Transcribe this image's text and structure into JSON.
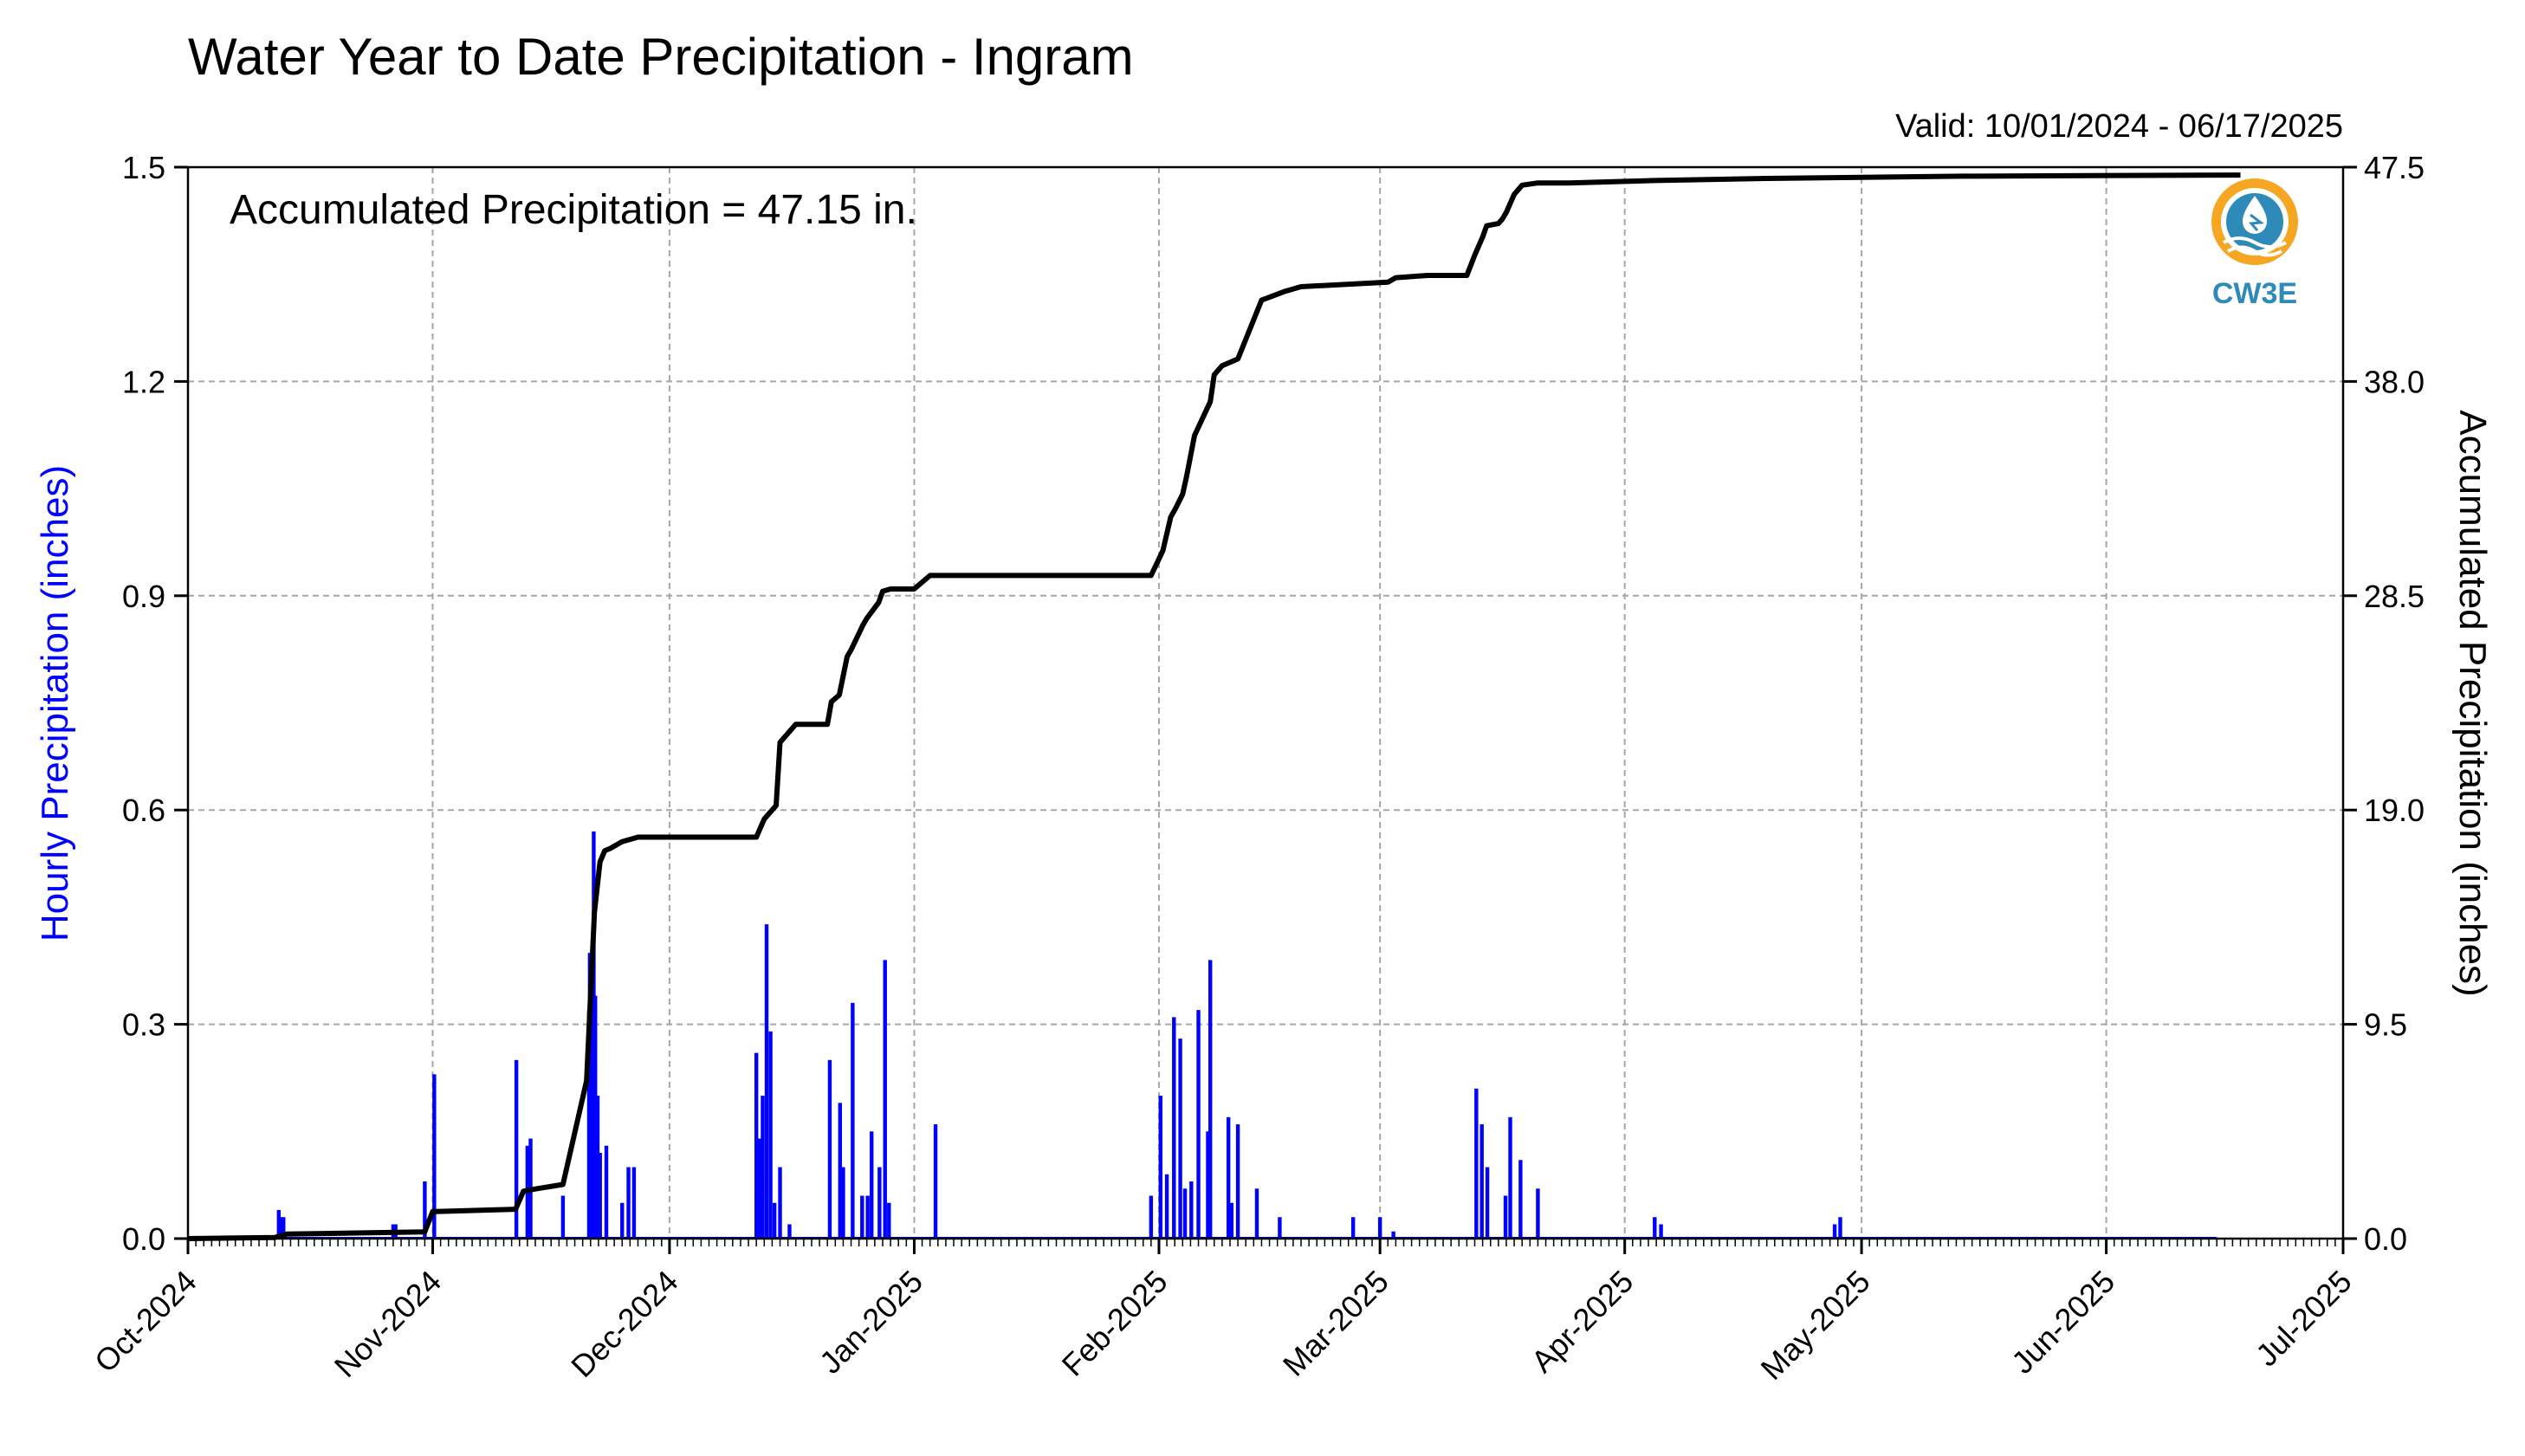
{
  "chart_data": {
    "type": "bar",
    "title": "Water Year to Date Precipitation - Ingram",
    "subtitle": "Valid: 10/01/2024 - 06/17/2025",
    "annotation": "Accumulated Precipitation = 47.15 in.",
    "ylabel": "Hourly Precipitation (inches)",
    "ylabel_right": "Accumulated Precipitation (inches)",
    "ylim": [
      0,
      1.5
    ],
    "ylim_right": [
      0,
      47.5
    ],
    "xlim": [
      0,
      273
    ],
    "x_unit": "days since 2024-10-01",
    "grid": true,
    "x_ticks": [
      {
        "label": "Oct-2024",
        "day": 0
      },
      {
        "label": "Nov-2024",
        "day": 31
      },
      {
        "label": "Dec-2024",
        "day": 61
      },
      {
        "label": "Jan-2025",
        "day": 92
      },
      {
        "label": "Feb-2025",
        "day": 123
      },
      {
        "label": "Mar-2025",
        "day": 151
      },
      {
        "label": "Apr-2025",
        "day": 182
      },
      {
        "label": "May-2025",
        "day": 212
      },
      {
        "label": "Jun-2025",
        "day": 243
      },
      {
        "label": "Jul-2025",
        "day": 273
      }
    ],
    "y_ticks_left": [
      "0.0",
      "0.3",
      "0.6",
      "0.9",
      "1.2",
      "1.5"
    ],
    "y_ticks_right": [
      "0.0",
      "9.5",
      "19.0",
      "28.5",
      "38.0",
      "47.5"
    ],
    "series": [
      {
        "name": "Hourly Precipitation (inches)",
        "type": "bar",
        "color": "#0000ff",
        "x": [
          11.5,
          11.8,
          12.1,
          26.0,
          26.3,
          30.0,
          31.2,
          41.6,
          43.0,
          43.4,
          47.5,
          50.8,
          50.9,
          51.1,
          51.4,
          51.6,
          51.9,
          52.2,
          53.0,
          55.0,
          55.8,
          56.5,
          72.0,
          72.4,
          72.8,
          73.3,
          73.8,
          74.3,
          75.0,
          76.2,
          81.3,
          82.6,
          83.0,
          84.2,
          85.4,
          86.1,
          86.6,
          87.6,
          88.3,
          88.8,
          94.7,
          122.0,
          123.2,
          124.0,
          124.9,
          125.7,
          126.3,
          127.1,
          128.0,
          129.2,
          129.5,
          131.8,
          132.2,
          133.0,
          135.4,
          138.3,
          147.6,
          151.0,
          152.7,
          163.2,
          163.9,
          164.6,
          166.9,
          167.5,
          168.8,
          171.0,
          185.8,
          186.6,
          208.6,
          209.3
        ],
        "values": [
          0.04,
          0.03,
          0.03,
          0.02,
          0.02,
          0.08,
          0.23,
          0.25,
          0.13,
          0.14,
          0.06,
          0.32,
          0.4,
          0.38,
          0.57,
          0.34,
          0.2,
          0.12,
          0.13,
          0.05,
          0.1,
          0.1,
          0.26,
          0.14,
          0.2,
          0.44,
          0.29,
          0.05,
          0.1,
          0.02,
          0.25,
          0.19,
          0.1,
          0.33,
          0.06,
          0.06,
          0.15,
          0.1,
          0.39,
          0.05,
          0.16,
          0.06,
          0.2,
          0.09,
          0.31,
          0.28,
          0.07,
          0.08,
          0.32,
          0.15,
          0.39,
          0.17,
          0.05,
          0.16,
          0.07,
          0.03,
          0.03,
          0.03,
          0.01,
          0.21,
          0.16,
          0.1,
          0.06,
          0.17,
          0.11,
          0.07,
          0.03,
          0.02,
          0.02,
          0.03
        ]
      },
      {
        "name": "Accumulated Precipitation (inches)",
        "type": "line",
        "color": "#000000",
        "axis": "right",
        "x": [
          0,
          11,
          12.5,
          30,
          31,
          31.5,
          41.5,
          42.5,
          44,
          47.5,
          50.5,
          51.5,
          52.2,
          52.8,
          53.5,
          55,
          56,
          57,
          72,
          73,
          74.5,
          75,
          77,
          81,
          81.5,
          82.5,
          83.5,
          84,
          85.5,
          86,
          87.5,
          88,
          89,
          92,
          94,
          122,
          123.5,
          124.5,
          125,
          126,
          126.5,
          127.5,
          129.5,
          130,
          131,
          133,
          136,
          139,
          141,
          152,
          153,
          157,
          162,
          163,
          164,
          164.5,
          166,
          166.5,
          167,
          168,
          169,
          171,
          175,
          185,
          200,
          212,
          225,
          260
        ],
        "values": [
          0.0,
          0.05,
          0.2,
          0.3,
          1.2,
          1.2,
          1.3,
          2.1,
          2.2,
          2.4,
          7.0,
          14.5,
          16.7,
          17.2,
          17.3,
          17.6,
          17.7,
          17.8,
          17.8,
          18.6,
          19.2,
          22.0,
          22.8,
          22.8,
          23.8,
          24.1,
          25.8,
          26.1,
          27.2,
          27.5,
          28.2,
          28.7,
          28.8,
          28.8,
          29.4,
          29.4,
          30.5,
          32.0,
          32.3,
          33.0,
          33.8,
          35.6,
          37.1,
          38.3,
          38.7,
          39.0,
          41.6,
          42.0,
          42.2,
          42.4,
          42.6,
          42.7,
          42.7,
          43.6,
          44.4,
          44.9,
          45.0,
          45.2,
          45.5,
          46.3,
          46.7,
          46.8,
          46.8,
          46.9,
          47.0,
          47.05,
          47.1,
          47.15
        ]
      }
    ],
    "logo_text": "CW3E"
  }
}
